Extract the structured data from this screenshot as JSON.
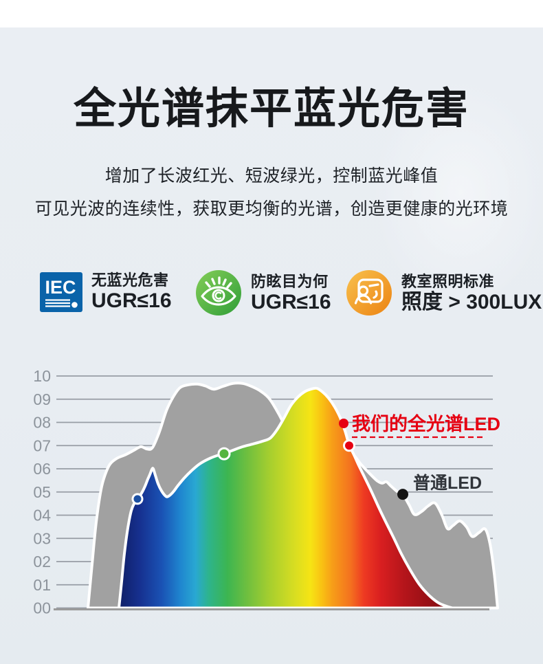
{
  "page": {
    "bg_color": "#e8edf2",
    "top_strip_color": "#ffffff"
  },
  "header": {
    "title": "全光谱抹平蓝光危害",
    "subtitle_line1": "增加了长波红光、短波绿光，控制蓝光峰值",
    "subtitle_line2": "可见光波的连续性，获取更均衡的光谱，创造更健康的光环境"
  },
  "badges": [
    {
      "icon": "iec-logo",
      "icon_text": "IEC",
      "icon_color": "#0a63a9",
      "line1": "无蓝光危害",
      "line2": "UGR≤16"
    },
    {
      "icon": "eye",
      "icon_color": "#4cb244",
      "line1": "防眩目为何",
      "line2": "UGR≤16"
    },
    {
      "icon": "classroom",
      "icon_color": "#f09c1e",
      "line1": "教室照明标准",
      "line2": "照度 > 300LUX"
    }
  ],
  "chart_data": {
    "type": "area",
    "title": "",
    "xlabel": "",
    "ylabel": "",
    "grid": true,
    "y_range": [
      0,
      10
    ],
    "y_ticks": [
      "10",
      "09",
      "08",
      "07",
      "06",
      "05",
      "04",
      "03",
      "02",
      "01",
      "00"
    ],
    "series": [
      {
        "name": "普通LED",
        "style": "solid-gray",
        "color": "#a1a1a1",
        "points": [
          [
            128,
            0
          ],
          [
            134,
            1.9
          ],
          [
            140,
            3.7
          ],
          [
            147,
            5.1
          ],
          [
            153,
            5.75
          ],
          [
            160,
            6.2
          ],
          [
            170,
            6.45
          ],
          [
            182,
            6.6
          ],
          [
            195,
            6.8
          ],
          [
            205,
            6.95
          ],
          [
            214,
            6.85
          ],
          [
            222,
            6.92
          ],
          [
            232,
            7.6
          ],
          [
            242,
            8.5
          ],
          [
            252,
            9.1
          ],
          [
            262,
            9.5
          ],
          [
            274,
            9.62
          ],
          [
            287,
            9.65
          ],
          [
            299,
            9.57
          ],
          [
            311,
            9.43
          ],
          [
            324,
            9.55
          ],
          [
            339,
            9.68
          ],
          [
            353,
            9.68
          ],
          [
            366,
            9.55
          ],
          [
            379,
            9.35
          ],
          [
            391,
            9.05
          ],
          [
            401,
            8.6
          ],
          [
            411,
            8.05
          ],
          [
            421,
            7.4
          ],
          [
            433,
            6.85
          ],
          [
            452,
            6.55
          ],
          [
            472,
            6.5
          ],
          [
            492,
            6.55
          ],
          [
            506,
            6.6
          ],
          [
            514,
            6.6
          ],
          [
            525,
            6.2
          ],
          [
            536,
            5.85
          ],
          [
            548,
            5.5
          ],
          [
            556,
            5.38
          ],
          [
            562,
            5.44
          ],
          [
            569,
            5.25
          ],
          [
            578,
            5.02
          ],
          [
            586,
            4.9
          ],
          [
            595,
            4.45
          ],
          [
            603,
            4.03
          ],
          [
            613,
            4.15
          ],
          [
            623,
            4.4
          ],
          [
            633,
            4.52
          ],
          [
            643,
            4.0
          ],
          [
            651,
            3.42
          ],
          [
            659,
            3.55
          ],
          [
            669,
            3.75
          ],
          [
            679,
            3.48
          ],
          [
            687,
            3.08
          ],
          [
            697,
            3.25
          ],
          [
            706,
            3.4
          ],
          [
            713,
            2.75
          ],
          [
            719,
            1.5
          ],
          [
            723,
            0.3
          ],
          [
            724,
            0
          ]
        ]
      },
      {
        "name": "我们的全光谱LED",
        "style": "spectrum-gradient",
        "color": "spectrum",
        "points": [
          [
            173,
            0
          ],
          [
            177,
            1.15
          ],
          [
            181,
            2.35
          ],
          [
            186,
            3.45
          ],
          [
            191,
            4.2
          ],
          [
            196,
            4.55
          ],
          [
            200,
            4.7
          ],
          [
            206,
            4.95
          ],
          [
            211,
            5.25
          ],
          [
            215,
            5.55
          ],
          [
            218,
            5.75
          ],
          [
            221,
            5.98
          ],
          [
            223,
            6.0
          ],
          [
            226,
            5.72
          ],
          [
            230,
            5.35
          ],
          [
            235,
            5.05
          ],
          [
            240,
            4.85
          ],
          [
            244,
            4.8
          ],
          [
            251,
            4.97
          ],
          [
            259,
            5.28
          ],
          [
            268,
            5.6
          ],
          [
            278,
            5.9
          ],
          [
            291,
            6.22
          ],
          [
            306,
            6.46
          ],
          [
            319,
            6.6
          ],
          [
            326,
            6.65
          ],
          [
            339,
            6.8
          ],
          [
            353,
            6.95
          ],
          [
            367,
            7.06
          ],
          [
            381,
            7.18
          ],
          [
            393,
            7.32
          ],
          [
            403,
            7.68
          ],
          [
            413,
            8.18
          ],
          [
            423,
            8.72
          ],
          [
            433,
            9.08
          ],
          [
            443,
            9.32
          ],
          [
            453,
            9.44
          ],
          [
            461,
            9.47
          ],
          [
            469,
            9.32
          ],
          [
            478,
            9.05
          ],
          [
            487,
            8.66
          ],
          [
            495,
            8.2
          ],
          [
            502,
            7.63
          ],
          [
            508,
            7.03
          ],
          [
            515,
            6.6
          ],
          [
            523,
            6.08
          ],
          [
            531,
            5.6
          ],
          [
            540,
            5.05
          ],
          [
            550,
            4.4
          ],
          [
            560,
            3.78
          ],
          [
            572,
            3.07
          ],
          [
            584,
            2.33
          ],
          [
            596,
            1.68
          ],
          [
            610,
            1.02
          ],
          [
            624,
            0.55
          ],
          [
            638,
            0.22
          ],
          [
            650,
            0.07
          ],
          [
            658,
            0
          ]
        ]
      }
    ],
    "spectrum_stops": [
      {
        "offset": 0,
        "color": "#101f66"
      },
      {
        "offset": 0.062,
        "color": "#16308f"
      },
      {
        "offset": 0.13,
        "color": "#1a53b5"
      },
      {
        "offset": 0.185,
        "color": "#1f86cf"
      },
      {
        "offset": 0.23,
        "color": "#29a8d2"
      },
      {
        "offset": 0.27,
        "color": "#2eb48b"
      },
      {
        "offset": 0.325,
        "color": "#3cb551"
      },
      {
        "offset": 0.385,
        "color": "#6fbf3f"
      },
      {
        "offset": 0.455,
        "color": "#a8cf2e"
      },
      {
        "offset": 0.53,
        "color": "#dade21"
      },
      {
        "offset": 0.575,
        "color": "#f6e414"
      },
      {
        "offset": 0.61,
        "color": "#f9c013"
      },
      {
        "offset": 0.64,
        "color": "#f79e18"
      },
      {
        "offset": 0.695,
        "color": "#f4711f"
      },
      {
        "offset": 0.735,
        "color": "#ee3a22"
      },
      {
        "offset": 0.785,
        "color": "#d91f20"
      },
      {
        "offset": 0.855,
        "color": "#b5151b"
      },
      {
        "offset": 0.93,
        "color": "#971015"
      },
      {
        "offset": 1,
        "color": "#7c0d11"
      }
    ],
    "markers": [
      {
        "series": "我们的全光谱LED",
        "x": 200,
        "value": 4.7,
        "color": "#1c50a2",
        "r": 7,
        "ring": true
      },
      {
        "series": "我们的全光谱LED",
        "x": 326,
        "value": 6.65,
        "color": "#55b53e",
        "r": 8,
        "ring": true
      },
      {
        "series": "我们的全光谱LED",
        "x": 508,
        "value": 7.0,
        "color": "#e60012",
        "r": 7.5,
        "ring": true
      },
      {
        "series": "普通LED",
        "x": 586,
        "value": 4.9,
        "color": "#141414",
        "r": 8,
        "ring": false
      }
    ],
    "annotations": [
      {
        "text": "我们的全光谱LED",
        "color": "#e60012",
        "style": "dashed-underline"
      },
      {
        "text": "普通LED",
        "color": "#30343a"
      }
    ]
  }
}
